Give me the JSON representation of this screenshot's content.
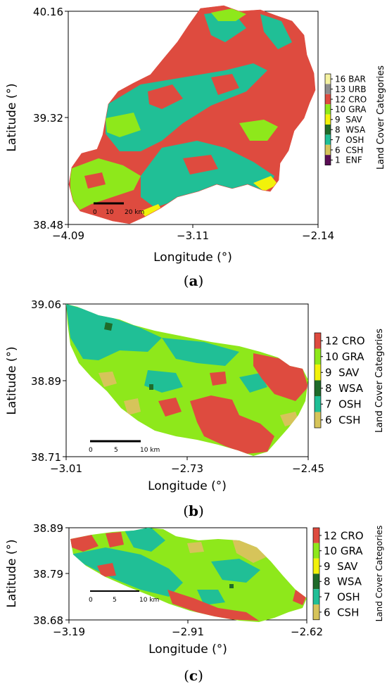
{
  "palette": {
    "CRO": "#de4b3f",
    "GRA": "#8ee81b",
    "SAV": "#f2f20a",
    "WSA": "#1f6b2a",
    "OSH": "#20bf96",
    "CSH": "#d6c45a",
    "URB": "#8e8e8e",
    "BAR": "#f5f2a0",
    "ENF": "#5a0d55"
  },
  "panels": [
    {
      "caption_letter": "a",
      "xlabel": "Longitude (°)",
      "ylabel": "Latitude (°)",
      "x_ticks": [
        "−4.09",
        "−3.11",
        "−2.14"
      ],
      "y_ticks": [
        "40.16",
        "39.32",
        "38.48"
      ],
      "xlim": [
        -4.09,
        -2.14
      ],
      "ylim": [
        38.48,
        40.16
      ],
      "scale_bar": {
        "labels": [
          "0",
          "10",
          "20 km"
        ]
      },
      "legend_title": "Land Cover Categories",
      "legend": [
        {
          "label": "16 BAR",
          "key": "BAR"
        },
        {
          "label": "13 URB",
          "key": "URB"
        },
        {
          "label": "12 CRO",
          "key": "CRO"
        },
        {
          "label": "10 GRA",
          "key": "GRA"
        },
        {
          "label": "9  SAV",
          "key": "SAV"
        },
        {
          "label": "8  WSA",
          "key": "WSA"
        },
        {
          "label": "7  OSH",
          "key": "OSH"
        },
        {
          "label": "6  CSH",
          "key": "CSH"
        },
        {
          "label": "1  ENF",
          "key": "ENF"
        }
      ]
    },
    {
      "caption_letter": "b",
      "xlabel": "Longitude (°)",
      "ylabel": "Latitude (°)",
      "x_ticks": [
        "−3.01",
        "−2.73",
        "−2.45"
      ],
      "y_ticks": [
        "39.06",
        "38.89",
        "38.71"
      ],
      "xlim": [
        -3.01,
        -2.45
      ],
      "ylim": [
        38.71,
        39.06
      ],
      "scale_bar": {
        "labels": [
          "0",
          "5",
          "10 km"
        ]
      },
      "legend_title": "Land Cover Categories",
      "legend": [
        {
          "label": "12 CRO",
          "key": "CRO"
        },
        {
          "label": "10 GRA",
          "key": "GRA"
        },
        {
          "label": "9  SAV",
          "key": "SAV"
        },
        {
          "label": "8  WSA",
          "key": "WSA"
        },
        {
          "label": "7  OSH",
          "key": "OSH"
        },
        {
          "label": "6  CSH",
          "key": "CSH"
        }
      ]
    },
    {
      "caption_letter": "c",
      "xlabel": "Longitude (°)",
      "ylabel": "Latitude (°)",
      "x_ticks": [
        "−3.19",
        "−2.91",
        "−2.62"
      ],
      "y_ticks": [
        "38.89",
        "38.79",
        "38.68"
      ],
      "xlim": [
        -3.19,
        -2.62
      ],
      "ylim": [
        38.68,
        38.89
      ],
      "scale_bar": {
        "labels": [
          "0",
          "5",
          "10 km"
        ]
      },
      "legend_title": "Land Cover Categories",
      "legend": [
        {
          "label": "12 CRO",
          "key": "CRO"
        },
        {
          "label": "10 GRA",
          "key": "GRA"
        },
        {
          "label": "9  SAV",
          "key": "SAV"
        },
        {
          "label": "8  WSA",
          "key": "WSA"
        },
        {
          "label": "7  OSH",
          "key": "OSH"
        },
        {
          "label": "6  CSH",
          "key": "CSH"
        }
      ]
    }
  ]
}
